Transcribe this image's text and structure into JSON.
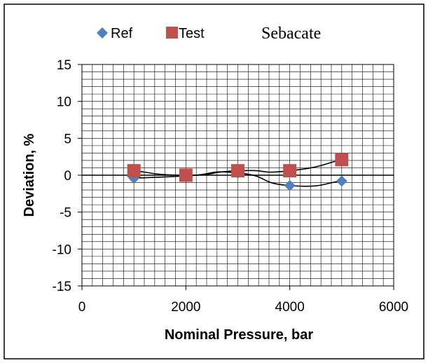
{
  "chart_data": {
    "type": "scatter",
    "title": "Sebacate",
    "xlabel": "Nominal Pressure, bar",
    "ylabel": "Deviation, %",
    "xlim": [
      0,
      6000
    ],
    "ylim": [
      -15,
      15
    ],
    "x_ticks": [
      "0",
      "2000",
      "4000",
      "6000"
    ],
    "y_ticks": [
      "15",
      "10",
      "5",
      "0",
      "-5",
      "-10",
      "-15"
    ],
    "grid": true,
    "legend": "top-left",
    "series": [
      {
        "name": "Ref",
        "marker": "diamond",
        "color": "#4f81bd",
        "x": [
          1000,
          2000,
          3000,
          4000,
          5000
        ],
        "y": [
          -0.4,
          -0.1,
          0.3,
          -1.4,
          -0.8
        ]
      },
      {
        "name": "Test",
        "marker": "square",
        "color": "#c0504d",
        "x": [
          1000,
          2000,
          3000,
          4000,
          5000
        ],
        "y": [
          0.6,
          0.0,
          0.6,
          0.6,
          2.1
        ]
      }
    ]
  }
}
